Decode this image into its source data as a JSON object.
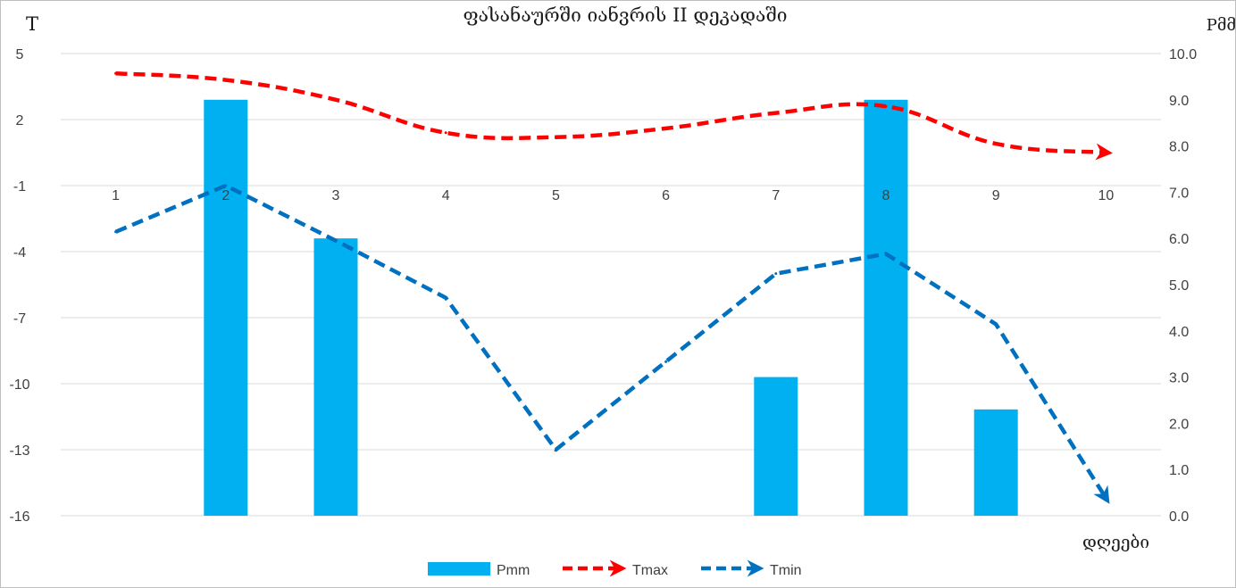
{
  "chart_data": {
    "type": "bar+line",
    "title": "ფასანაურში იანვრის II დეკადაში",
    "y_left_label": "T",
    "y_right_label": "Pმმ",
    "x_label": "დღეები",
    "categories": [
      "1",
      "2",
      "3",
      "4",
      "5",
      "6",
      "7",
      "8",
      "9",
      "10"
    ],
    "y_left": {
      "min": -16,
      "max": 5,
      "ticks": [
        "5",
        "2",
        "-1",
        "-4",
        "-7",
        "-10",
        "-13",
        "-16"
      ]
    },
    "y_right": {
      "min": 0,
      "max": 10,
      "ticks": [
        "10.0",
        "9.0",
        "8.0",
        "7.0",
        "6.0",
        "5.0",
        "4.0",
        "3.0",
        "2.0",
        "1.0",
        "0.0"
      ]
    },
    "x_axis_crosses_left_at": -1,
    "grid": true,
    "legend_position": "bottom",
    "series": [
      {
        "name": "Pmm",
        "kind": "bar",
        "axis": "right",
        "color": "#00b0f0",
        "values": [
          0,
          9.0,
          6.0,
          0,
          0,
          0,
          3.0,
          9.0,
          2.3,
          0
        ]
      },
      {
        "name": "Tmax",
        "kind": "line",
        "axis": "left",
        "color": "#ff0000",
        "style": "dashed-arrow",
        "values": [
          4.1,
          3.8,
          2.9,
          1.4,
          1.2,
          1.6,
          2.3,
          2.6,
          0.9,
          0.5
        ]
      },
      {
        "name": "Tmin",
        "kind": "line",
        "axis": "left",
        "color": "#0070c0",
        "style": "dashed-arrow",
        "values": [
          -3.1,
          -1.0,
          -3.5,
          -6.1,
          -13.0,
          -9.0,
          -5.0,
          -4.1,
          -7.3,
          -15.2
        ]
      }
    ]
  }
}
